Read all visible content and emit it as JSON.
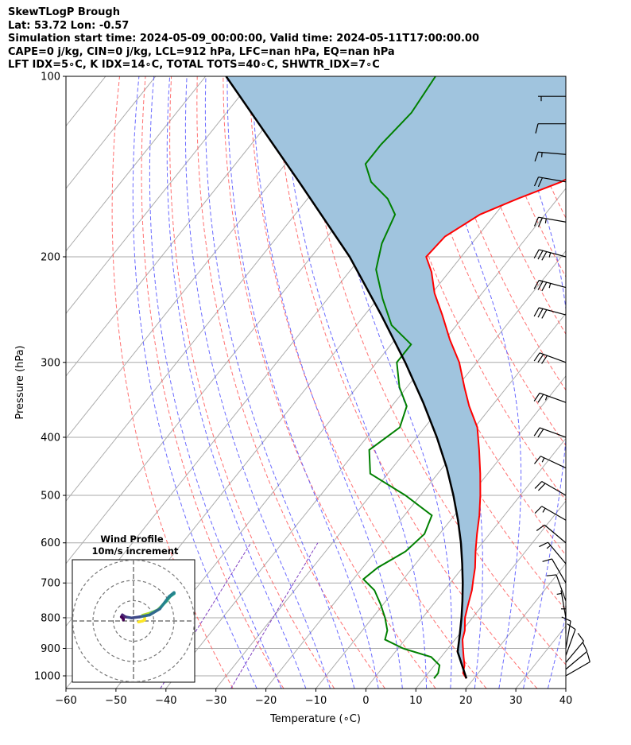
{
  "header": {
    "title": "SkewTLogP Brough",
    "location": "Lat: 53.72   Lon: -0.57",
    "times": "Simulation start time: 2024-05-09_00:00:00, Valid time: 2024-05-11T17:00:00.00",
    "convective": "CAPE=0 j/kg, CIN=0 j/kg, LCL=912 hPa, LFC=nan hPa, EQ=nan hPa",
    "indices": "LFT IDX=5∘C, K IDX=14∘C, TOTAL TOTS=40∘C, SHWTR_IDX=7∘C"
  },
  "chart_data": {
    "type": "line",
    "subtype": "skew-T log-P diagram",
    "xlabel": "Temperature (∘C)",
    "ylabel": "Pressure (hPa)",
    "xlim": [
      -60,
      40
    ],
    "ylim": [
      1050,
      100
    ],
    "y_scale": "log",
    "grid": true,
    "x_ticks": [
      "−60",
      "−50",
      "−40",
      "−30",
      "−20",
      "−10",
      "0",
      "10",
      "20",
      "30",
      "40"
    ],
    "y_ticks": [
      "100",
      "200",
      "300",
      "400",
      "500",
      "600",
      "700",
      "800",
      "900",
      "1000"
    ],
    "colors": {
      "temperature": "#ff0000",
      "dewpoint": "#008000",
      "parcel": "#000000",
      "shade": "#a0c4de",
      "dry_adiabat": "#ff6060",
      "moist_adiabat": "#5050ff",
      "mixing_ratio": "#8040c0",
      "isotherm": "#aaaaaa"
    },
    "temperature_profile": {
      "pressure": [
        1010,
        990,
        960,
        930,
        900,
        870,
        840,
        800,
        760,
        720,
        690,
        660,
        620,
        580,
        540,
        500,
        460,
        420,
        385,
        355,
        330,
        300,
        275,
        250,
        230,
        212,
        200,
        185,
        170,
        160,
        150,
        140,
        130,
        120,
        110,
        100
      ],
      "temperature": [
        18.5,
        17.0,
        16.0,
        14.5,
        13.0,
        11.5,
        10.5,
        8.5,
        7.0,
        5.5,
        4.0,
        2.5,
        0.0,
        -2.5,
        -5.0,
        -8.0,
        -11.5,
        -15.5,
        -19.5,
        -24.5,
        -28.5,
        -33.5,
        -39.0,
        -44.5,
        -49.5,
        -53.5,
        -57.0,
        -56.5,
        -53.0,
        -48.0,
        -42.0,
        -38.0,
        -37.0,
        -37.0,
        -38.0,
        -40.0
      ]
    },
    "dewpoint_profile": {
      "pressure": [
        1010,
        990,
        960,
        930,
        900,
        870,
        840,
        800,
        760,
        720,
        690,
        660,
        620,
        580,
        540,
        500,
        460,
        420,
        385,
        355,
        330,
        300,
        280,
        260,
        235,
        210,
        190,
        170,
        160,
        150,
        140,
        130,
        115,
        100
      ],
      "temperature": [
        12.0,
        12.0,
        11.0,
        8.0,
        1.0,
        -4.0,
        -5.0,
        -7.5,
        -10.5,
        -14.0,
        -18.0,
        -17.0,
        -14.0,
        -13.0,
        -14.5,
        -23.0,
        -33.5,
        -37.5,
        -35.0,
        -37.0,
        -41.5,
        -46.0,
        -46.0,
        -53.0,
        -59.0,
        -65.0,
        -68.0,
        -70.0,
        -74.0,
        -80.0,
        -84.0,
        -84.0,
        -83.0,
        -84.0
      ]
    },
    "parcel_profile": {
      "pressure": [
        1010,
        960,
        912,
        850,
        800,
        750,
        700,
        650,
        600,
        550,
        500,
        450,
        400,
        350,
        300,
        250,
        200,
        150,
        100
      ],
      "temperature": [
        18.5,
        15.5,
        12.5,
        10.0,
        7.8,
        5.3,
        2.5,
        -0.7,
        -4.3,
        -8.5,
        -13.4,
        -19.1,
        -26.0,
        -34.3,
        -44.3,
        -56.7,
        -72.3,
        -94.4,
        -125.9
      ]
    },
    "wind_barbs": {
      "pressure": [
        1000,
        975,
        950,
        925,
        900,
        850,
        800,
        750,
        700,
        650,
        600,
        550,
        500,
        450,
        400,
        350,
        300,
        250,
        225,
        200,
        175,
        150,
        135,
        120,
        108
      ],
      "speed_kt": [
        8,
        10,
        12,
        10,
        8,
        5,
        5,
        8,
        10,
        15,
        10,
        15,
        20,
        15,
        20,
        25,
        30,
        30,
        35,
        35,
        25,
        20,
        15,
        10,
        5
      ],
      "direction_deg": [
        120,
        130,
        140,
        160,
        170,
        180,
        190,
        200,
        210,
        220,
        230,
        240,
        240,
        245,
        250,
        250,
        250,
        255,
        255,
        255,
        260,
        260,
        265,
        270,
        270
      ]
    },
    "hodograph": {
      "title": "Wind Profile",
      "subtitle": "10m/s increment",
      "rings_ms": [
        10,
        20,
        30
      ],
      "u": [
        2.5,
        4.5,
        5.5,
        5.5,
        4.5,
        8.5,
        12.0,
        14.5,
        16.5,
        18.0,
        20.0,
        20.0,
        17.5,
        13.0,
        8.0,
        3.0,
        -1.0,
        -4.0,
        -5.5,
        -6.0,
        -5.0,
        -5.0
      ],
      "v": [
        -0.5,
        0.0,
        0.5,
        2.5,
        2.8,
        4.0,
        5.5,
        8.0,
        10.0,
        12.0,
        13.5,
        14.0,
        12.0,
        6.0,
        3.0,
        2.0,
        1.5,
        2.0,
        3.0,
        2.0,
        1.0,
        0.5
      ]
    }
  }
}
